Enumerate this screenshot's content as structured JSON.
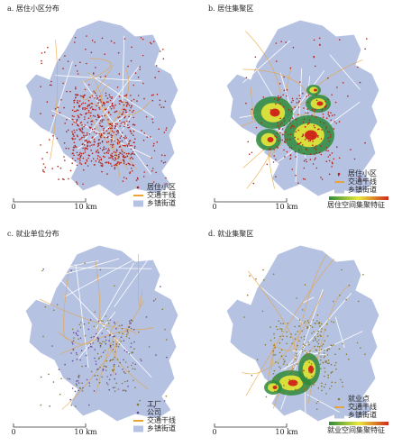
{
  "panels": [
    {
      "title": "a. 居住小区分布",
      "scale": [
        "0",
        "10 km"
      ],
      "legend": [
        {
          "label": "居住小区",
          "symbol": "dot",
          "color": "#b3241c"
        },
        {
          "label": "交通干线",
          "symbol": "line",
          "color": "#e8a33a"
        },
        {
          "label": "乡镇街道",
          "symbol": "patch",
          "color": "#b6c2e2"
        }
      ]
    },
    {
      "title": "b. 居住集聚区",
      "scale": [
        "0",
        "10 km"
      ],
      "heat_label": "居住空间集聚特征",
      "legend": [
        {
          "label": "居住小区",
          "symbol": "dot",
          "color": "#b3241c"
        },
        {
          "label": "交通干线",
          "symbol": "line",
          "color": "#e8a33a"
        },
        {
          "label": "乡镇街道",
          "symbol": "patch",
          "color": "#b6c2e2"
        }
      ]
    },
    {
      "title": "c. 就业单位分布",
      "scale": [
        "0",
        "10 km"
      ],
      "legend": [
        {
          "label": "工厂",
          "symbol": "dot",
          "color": "#8a7d2c"
        },
        {
          "label": "公司",
          "symbol": "dot",
          "color": "#6b4c9a"
        },
        {
          "label": "交通干线",
          "symbol": "line",
          "color": "#e8a33a"
        },
        {
          "label": "乡镇街道",
          "symbol": "patch",
          "color": "#b6c2e2"
        }
      ]
    },
    {
      "title": "d. 就业集聚区",
      "scale": [
        "0",
        "10 km"
      ],
      "heat_label": "就业空间集聚特征",
      "legend": [
        {
          "label": "就业点",
          "symbol": "dot",
          "color": "#8a7d2c"
        },
        {
          "label": "交通干线",
          "symbol": "line",
          "color": "#e8a33a"
        },
        {
          "label": "乡镇街道",
          "symbol": "patch",
          "color": "#b6c2e2"
        }
      ]
    }
  ]
}
